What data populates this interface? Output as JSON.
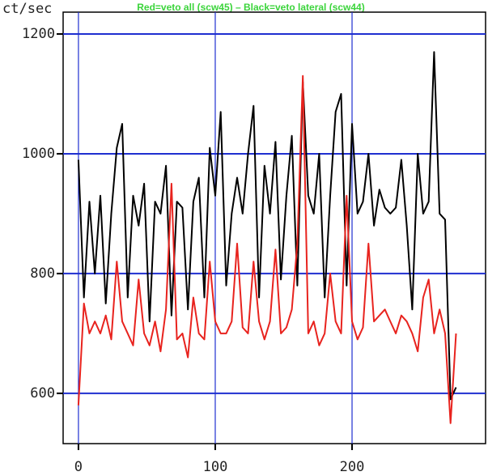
{
  "chart_data": {
    "type": "line",
    "title": "Red=veto all (scw45)  –  Black=veto lateral (scw44)",
    "y_label": "ct/sec",
    "x": [
      0,
      4,
      8,
      12,
      16,
      20,
      24,
      28,
      32,
      36,
      40,
      44,
      48,
      52,
      56,
      60,
      64,
      68,
      72,
      76,
      80,
      84,
      88,
      92,
      96,
      100,
      104,
      108,
      112,
      116,
      120,
      124,
      128,
      132,
      136,
      140,
      144,
      148,
      152,
      156,
      160,
      164,
      168,
      172,
      176,
      180,
      184,
      188,
      192,
      196,
      200,
      204,
      208,
      212,
      216,
      220,
      224,
      228,
      232,
      236,
      240,
      244,
      248,
      252,
      256,
      260,
      264,
      268,
      272,
      276
    ],
    "series": [
      {
        "color": "#000000",
        "values": [
          990,
          760,
          920,
          800,
          930,
          750,
          900,
          1010,
          1050,
          760,
          930,
          880,
          950,
          720,
          920,
          900,
          980,
          730,
          920,
          910,
          740,
          920,
          960,
          760,
          1010,
          930,
          1070,
          780,
          900,
          960,
          900,
          1000,
          1080,
          760,
          980,
          900,
          1020,
          790,
          930,
          1030,
          780,
          1120,
          930,
          900,
          1000,
          760,
          930,
          1070,
          1100,
          780,
          1050,
          900,
          920,
          1000,
          880,
          940,
          910,
          900,
          910,
          990,
          880,
          740,
          1000,
          900,
          920,
          1170,
          900,
          890,
          590,
          610
        ]
      },
      {
        "color": "#e8231e",
        "values": [
          580,
          750,
          700,
          720,
          700,
          730,
          690,
          820,
          720,
          700,
          680,
          790,
          700,
          680,
          720,
          670,
          740,
          950,
          690,
          700,
          660,
          760,
          700,
          690,
          820,
          720,
          700,
          700,
          720,
          850,
          710,
          700,
          820,
          720,
          690,
          720,
          840,
          700,
          710,
          740,
          850,
          1130,
          700,
          720,
          680,
          700,
          800,
          720,
          700,
          930,
          720,
          690,
          710,
          850,
          720,
          730,
          740,
          720,
          700,
          730,
          720,
          700,
          670,
          760,
          790,
          700,
          740,
          700,
          550,
          700
        ]
      }
    ],
    "xlim": [
      -11.2,
      297.6
    ],
    "ylim": [
      516,
      1236.5
    ],
    "xticks": [
      0,
      100,
      200
    ],
    "yticks": [
      600,
      800,
      1000,
      1200
    ],
    "grid": true,
    "grid_color": "#1f2fd0",
    "title_color": "#3bd43b"
  }
}
